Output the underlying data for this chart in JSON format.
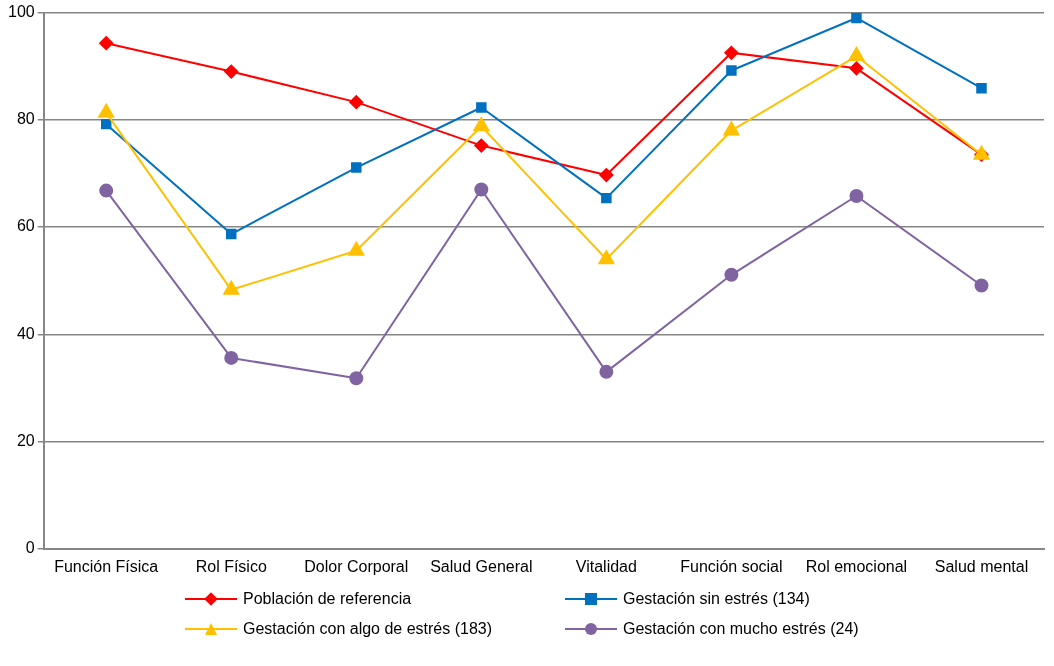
{
  "chart_data": {
    "type": "line",
    "categories": [
      "Función Física",
      "Rol Físico",
      "Dolor Corporal",
      "Salud General",
      "Vitalidad",
      "Función social",
      "Rol emocional",
      "Salud mental"
    ],
    "series": [
      {
        "name": "Población de referencia",
        "color": "#ff0000",
        "marker": "diamond",
        "values": [
          94.3,
          89.0,
          83.3,
          75.2,
          69.7,
          92.5,
          89.6,
          73.5
        ]
      },
      {
        "name": "Gestación sin estrés (134)",
        "color": "#0070c0",
        "marker": "square",
        "values": [
          79.2,
          58.7,
          71.1,
          82.3,
          65.4,
          89.2,
          99.0,
          85.9
        ]
      },
      {
        "name": "Gestación con algo de estrés (183)",
        "color": "#ffc000",
        "marker": "triangle",
        "values": [
          81.3,
          48.3,
          55.6,
          78.8,
          54.0,
          78.0,
          91.9,
          73.5
        ]
      },
      {
        "name": "Gestación con mucho estrés (24)",
        "color": "#8064a2",
        "marker": "circle",
        "values": [
          66.8,
          35.6,
          31.8,
          67.0,
          33.0,
          51.1,
          65.8,
          49.1
        ]
      }
    ],
    "ylim": [
      0,
      100
    ],
    "yticks": [
      0,
      20,
      40,
      60,
      80,
      100
    ],
    "grid": "y",
    "legend": "bottom"
  }
}
